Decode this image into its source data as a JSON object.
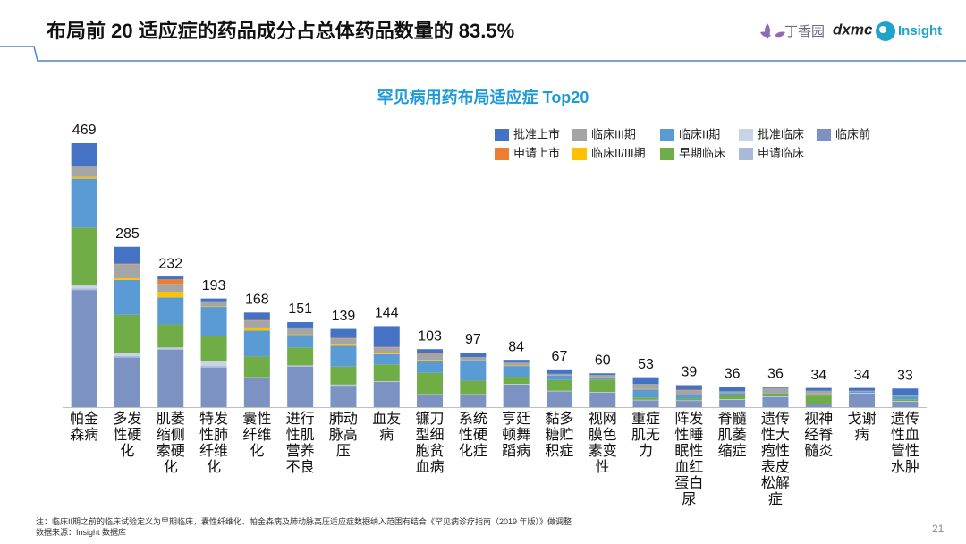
{
  "header": {
    "title": "布局前 20 适应症的药品成分占总体药品数量的 83.5%",
    "logos": [
      "丁香园",
      "dxmc",
      "Insight"
    ]
  },
  "chart_data": {
    "type": "stacked-bar",
    "title": "罕见病用药布局适应症 Top20",
    "categories": [
      "帕金森病",
      "多发性硬化",
      "肌萎缩侧索硬化",
      "特发性肺纤维化",
      "囊性纤维化",
      "进行性肌营养不良",
      "肺动脉高压",
      "血友病",
      "镰刀型细胞贫血病",
      "系统性硬化症",
      "亨廷顿舞蹈病",
      "黏多糖贮积症",
      "视网膜色素变性",
      "重症肌无力",
      "阵发性睡眠性血红蛋白尿",
      "脊髓肌萎缩症",
      "遗传性大疱性表皮松解症",
      "视神经脊髓炎",
      "戈谢病",
      "遗传性血管性水肿"
    ],
    "totals": [
      469,
      285,
      232,
      193,
      168,
      151,
      139,
      144,
      103,
      97,
      84,
      67,
      60,
      53,
      39,
      36,
      36,
      34,
      34,
      33
    ],
    "series": [
      {
        "name": "批准上市",
        "color": "#4472c4",
        "values": [
          40,
          30,
          5,
          5,
          13,
          11,
          16,
          37,
          8,
          8,
          5,
          8,
          3,
          12,
          8,
          8,
          2,
          5,
          5,
          11
        ]
      },
      {
        "name": "申请上市",
        "color": "#ed7d31",
        "values": [
          1,
          1,
          8,
          0,
          1,
          0,
          1,
          1,
          1,
          0,
          0,
          0,
          0,
          0,
          1,
          0,
          0,
          0,
          0,
          0
        ]
      },
      {
        "name": "临床III期",
        "color": "#a5a5a5",
        "values": [
          19,
          25,
          14,
          9,
          14,
          11,
          11,
          10,
          10,
          6,
          5,
          3,
          4,
          9,
          8,
          3,
          9,
          5,
          2,
          3
        ]
      },
      {
        "name": "临床II/III期",
        "color": "#ffc000",
        "values": [
          3,
          3,
          10,
          1,
          4,
          1,
          2,
          2,
          2,
          1,
          1,
          0,
          1,
          1,
          1,
          0,
          0,
          1,
          0,
          0
        ]
      },
      {
        "name": "临床II期",
        "color": "#5b9bd5",
        "values": [
          87,
          62,
          48,
          51,
          46,
          22,
          37,
          18,
          21,
          35,
          19,
          8,
          3,
          14,
          6,
          3,
          1,
          3,
          2,
          5
        ]
      },
      {
        "name": "早期临床",
        "color": "#70ad47",
        "values": [
          103,
          68,
          41,
          46,
          37,
          32,
          32,
          30,
          38,
          24,
          13,
          19,
          22,
          4,
          3,
          8,
          5,
          14,
          0,
          3
        ]
      },
      {
        "name": "批准临床",
        "color": "#c9d3e6",
        "values": [
          5,
          5,
          2,
          8,
          1,
          1,
          1,
          1,
          1,
          1,
          1,
          1,
          1,
          1,
          1,
          1,
          1,
          1,
          1,
          1
        ]
      },
      {
        "name": "申请临床",
        "color": "#a9b9d9",
        "values": [
          3,
          3,
          2,
          3,
          1,
          1,
          1,
          0,
          0,
          1,
          0,
          0,
          0,
          0,
          0,
          0,
          0,
          0,
          0,
          0
        ]
      },
      {
        "name": "临床前",
        "color": "#7b92c3",
        "values": [
          208,
          88,
          102,
          70,
          51,
          72,
          38,
          45,
          22,
          21,
          40,
          28,
          26,
          12,
          11,
          13,
          18,
          5,
          24,
          10
        ]
      }
    ]
  },
  "footer": {
    "note": "注：临床II期之前的临床试验定义为早期临床，囊性纤维化、帕金森病及肺动脉高压适应症数据纳入范围有结合《罕见病诊疗指南（2019 年版）》做调整",
    "source": "数据来源：Insight 数据库",
    "page": "21"
  }
}
